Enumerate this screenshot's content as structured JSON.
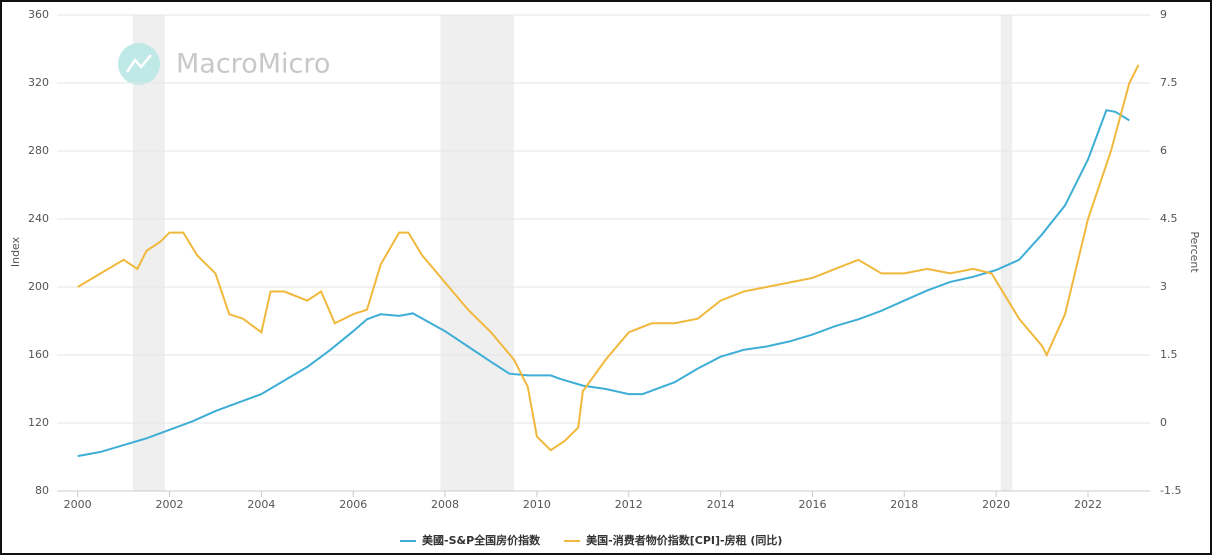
{
  "chart_data": {
    "type": "line",
    "watermark": "MacroMicro",
    "y_label": "Index",
    "y2_label": "Percent",
    "xlim": [
      1999.55,
      2023.35
    ],
    "xticks": [
      2000,
      2002,
      2004,
      2006,
      2008,
      2010,
      2012,
      2014,
      2016,
      2018,
      2020,
      2022
    ],
    "ylim": [
      80,
      360
    ],
    "yticks": [
      80,
      120,
      160,
      200,
      240,
      280,
      320,
      360
    ],
    "y2lim": [
      -1.5,
      9
    ],
    "y2ticks": [
      -1.5,
      0,
      1.5,
      3,
      4.5,
      6,
      7.5,
      9
    ],
    "grid": true,
    "shaded_ranges": [
      [
        2001.2,
        2001.9
      ],
      [
        2007.9,
        2009.5
      ],
      [
        2020.1,
        2020.35
      ]
    ],
    "series": [
      {
        "name": "美國-S&P全国房价指数",
        "color": "#3eaed6",
        "x": [
          2000,
          2000.5,
          2001,
          2001.5,
          2002,
          2002.5,
          2003,
          2003.5,
          2004,
          2004.5,
          2005,
          2005.5,
          2006,
          2006.3,
          2006.6,
          2007,
          2007.3,
          2007.6,
          2008,
          2008.5,
          2009,
          2009.4,
          2009.8,
          2010.3,
          2010.5,
          2011,
          2011.5,
          2012,
          2012.3,
          2012.5,
          2013,
          2013.5,
          2014,
          2014.5,
          2015,
          2015.5,
          2016,
          2016.5,
          2017,
          2017.5,
          2018,
          2018.5,
          2019,
          2019.5,
          2020,
          2020.5,
          2021,
          2021.5,
          2022,
          2022.4,
          2022.6,
          2022.9
        ],
        "values": [
          100.5,
          103,
          107,
          111,
          116,
          121,
          127,
          132,
          137,
          145,
          153,
          163,
          174,
          181,
          184,
          183,
          184.5,
          180,
          174,
          165,
          156,
          149,
          148,
          148,
          146,
          142,
          140,
          137,
          137,
          139,
          144,
          152,
          159,
          163,
          165,
          168,
          172,
          177,
          181,
          186,
          192,
          198,
          203,
          206,
          210,
          216,
          231,
          248,
          275,
          304,
          303,
          298
        ]
      },
      {
        "name": "美国-消费者物价指数[CPI]-房租 (同比)",
        "color": "#f0b83c",
        "axis": "y2",
        "x": [
          2000,
          2000.5,
          2001,
          2001.3,
          2001.5,
          2001.8,
          2002,
          2002.3,
          2002.6,
          2003,
          2003.3,
          2003.6,
          2004,
          2004.2,
          2004.5,
          2005,
          2005.3,
          2005.6,
          2006,
          2006.3,
          2006.6,
          2007,
          2007.2,
          2007.5,
          2008,
          2008.5,
          2009,
          2009.5,
          2009.8,
          2010,
          2010.3,
          2010.6,
          2010.9,
          2011,
          2011.5,
          2012,
          2012.5,
          2013,
          2013.5,
          2014,
          2014.5,
          2015,
          2015.5,
          2016,
          2016.5,
          2017,
          2017.5,
          2018,
          2018.5,
          2019,
          2019.5,
          2019.9,
          2020.2,
          2020.5,
          2021,
          2021.1,
          2021.5,
          2022,
          2022.5,
          2022.9,
          2023.1
        ],
        "values": [
          3.0,
          3.3,
          3.6,
          3.4,
          3.8,
          4.0,
          4.2,
          4.2,
          3.7,
          3.3,
          2.4,
          2.3,
          2.0,
          2.9,
          2.9,
          2.7,
          2.9,
          2.2,
          2.4,
          2.5,
          3.5,
          4.2,
          4.2,
          3.7,
          3.1,
          2.5,
          2.0,
          1.4,
          0.8,
          -0.3,
          -0.6,
          -0.4,
          -0.1,
          0.7,
          1.4,
          2.0,
          2.2,
          2.2,
          2.3,
          2.7,
          2.9,
          3.0,
          3.1,
          3.2,
          3.4,
          3.6,
          3.3,
          3.3,
          3.4,
          3.3,
          3.4,
          3.3,
          2.8,
          2.3,
          1.7,
          1.5,
          2.4,
          4.5,
          6.0,
          7.5,
          7.9
        ]
      }
    ]
  }
}
